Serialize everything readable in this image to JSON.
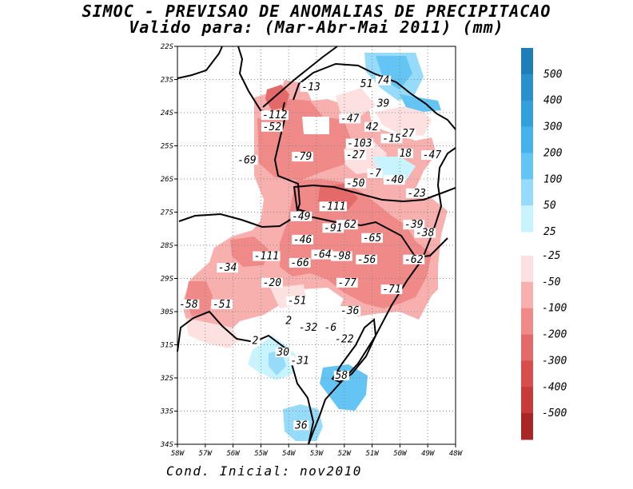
{
  "title": "SIMOC - PREVISAO DE ANOMALIAS DE PRECIPITACAO",
  "subtitle": "Valido para: (Mar-Abr-Mai 2011) (mm)",
  "footer": "Cond. Inicial: nov2010",
  "chart_data": {
    "type": "heatmap",
    "variable": "precipitation anomaly (mm)",
    "lat_axis": {
      "range": [
        -34,
        -22
      ],
      "ticks": [
        "22S",
        "23S",
        "24S",
        "25S",
        "26S",
        "27S",
        "28S",
        "29S",
        "30S",
        "31S",
        "32S",
        "33S",
        "34S"
      ]
    },
    "lon_axis": {
      "range": [
        -58,
        -48
      ],
      "ticks": [
        "58W",
        "57W",
        "56W",
        "55W",
        "54W",
        "53W",
        "52W",
        "51W",
        "50W",
        "49W",
        "48W"
      ]
    },
    "grid": true,
    "legend_positive": [
      {
        "label": "500",
        "color": "#1e7fb8"
      },
      {
        "label": "400",
        "color": "#2890cc"
      },
      {
        "label": "300",
        "color": "#33a0dc"
      },
      {
        "label": "200",
        "color": "#46b2eb"
      },
      {
        "label": "100",
        "color": "#64c4f4"
      },
      {
        "label": "50",
        "color": "#96dcfa"
      },
      {
        "label": "25",
        "color": "#c8f4ff"
      }
    ],
    "legend_negative": [
      {
        "label": "-25",
        "color": "#fde0e0"
      },
      {
        "label": "-50",
        "color": "#f8b0ae"
      },
      {
        "label": "-100",
        "color": "#ef8a88"
      },
      {
        "label": "-200",
        "color": "#e36a68"
      },
      {
        "label": "-300",
        "color": "#d84e4c"
      },
      {
        "label": "-400",
        "color": "#c63a38"
      },
      {
        "label": "-500",
        "color": "#a82626"
      }
    ],
    "annotations": [
      {
        "text": "-13",
        "lon": -53.2,
        "lat": -23.3
      },
      {
        "text": "51",
        "lon": -51.2,
        "lat": -23.2
      },
      {
        "text": "74",
        "lon": -50.6,
        "lat": -23.1
      },
      {
        "text": "39",
        "lon": -50.6,
        "lat": -23.8
      },
      {
        "text": "-112",
        "lon": -54.5,
        "lat": -24.15
      },
      {
        "text": "-47",
        "lon": -51.8,
        "lat": -24.25
      },
      {
        "text": "-52",
        "lon": -54.6,
        "lat": -24.5
      },
      {
        "text": "42",
        "lon": -51.0,
        "lat": -24.5
      },
      {
        "text": "27",
        "lon": -49.7,
        "lat": -24.7
      },
      {
        "text": "-15",
        "lon": -50.3,
        "lat": -24.85
      },
      {
        "text": "-103",
        "lon": -51.45,
        "lat": -25.0
      },
      {
        "text": "18",
        "lon": -49.8,
        "lat": -25.3
      },
      {
        "text": "-47",
        "lon": -48.85,
        "lat": -25.35
      },
      {
        "text": "-27",
        "lon": -51.6,
        "lat": -25.35
      },
      {
        "text": "-69",
        "lon": -55.5,
        "lat": -25.5
      },
      {
        "text": "-79",
        "lon": -53.5,
        "lat": -25.4
      },
      {
        "text": "-7",
        "lon": -50.9,
        "lat": -25.9
      },
      {
        "text": "-40",
        "lon": -50.2,
        "lat": -26.1
      },
      {
        "text": "-50",
        "lon": -51.6,
        "lat": -26.2
      },
      {
        "text": "-23",
        "lon": -49.4,
        "lat": -26.5
      },
      {
        "text": "-111",
        "lon": -52.4,
        "lat": -26.9
      },
      {
        "text": "-49",
        "lon": -53.55,
        "lat": -27.2
      },
      {
        "text": "-62",
        "lon": -51.9,
        "lat": -27.45
      },
      {
        "text": "-91",
        "lon": -52.4,
        "lat": -27.55
      },
      {
        "text": "-39",
        "lon": -49.5,
        "lat": -27.45
      },
      {
        "text": "-38",
        "lon": -49.1,
        "lat": -27.7
      },
      {
        "text": "-65",
        "lon": -51.0,
        "lat": -27.85
      },
      {
        "text": "-46",
        "lon": -53.5,
        "lat": -27.9
      },
      {
        "text": "-111",
        "lon": -54.8,
        "lat": -28.4
      },
      {
        "text": "-64",
        "lon": -52.8,
        "lat": -28.35
      },
      {
        "text": "-98",
        "lon": -52.1,
        "lat": -28.4
      },
      {
        "text": "-56",
        "lon": -51.2,
        "lat": -28.5
      },
      {
        "text": "-62",
        "lon": -49.5,
        "lat": -28.5
      },
      {
        "text": "-66",
        "lon": -53.6,
        "lat": -28.6
      },
      {
        "text": "-34",
        "lon": -56.2,
        "lat": -28.75
      },
      {
        "text": "-20",
        "lon": -54.6,
        "lat": -29.2
      },
      {
        "text": "-77",
        "lon": -51.9,
        "lat": -29.2
      },
      {
        "text": "-71",
        "lon": -50.3,
        "lat": -29.4
      },
      {
        "text": "-51",
        "lon": -53.7,
        "lat": -29.75
      },
      {
        "text": "-58",
        "lon": -57.6,
        "lat": -29.85
      },
      {
        "text": "-51",
        "lon": -56.4,
        "lat": -29.85
      },
      {
        "text": "-36",
        "lon": -51.8,
        "lat": -30.05
      },
      {
        "text": "2",
        "lon": -54.0,
        "lat": -30.35
      },
      {
        "text": "-32",
        "lon": -53.3,
        "lat": -30.55
      },
      {
        "text": "-6",
        "lon": -52.5,
        "lat": -30.55
      },
      {
        "text": "-22",
        "lon": -52.0,
        "lat": -30.9
      },
      {
        "text": "2",
        "lon": -55.2,
        "lat": -30.95
      },
      {
        "text": "30",
        "lon": -54.2,
        "lat": -31.3
      },
      {
        "text": "-31",
        "lon": -53.6,
        "lat": -31.55
      },
      {
        "text": "58",
        "lon": -52.1,
        "lat": -32.0
      },
      {
        "text": "36",
        "lon": -53.55,
        "lat": -33.5
      }
    ]
  }
}
